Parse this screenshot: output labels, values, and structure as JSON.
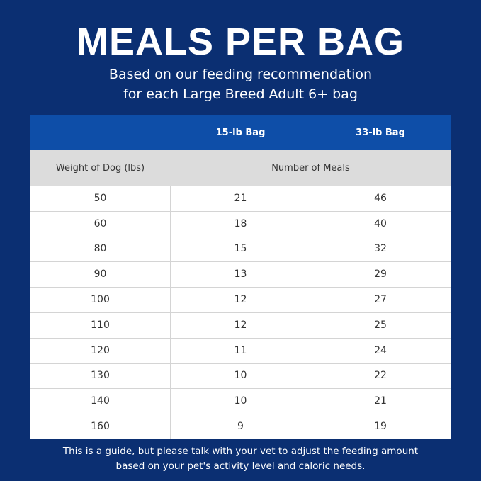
{
  "header": {
    "title": "MEALS PER BAG",
    "subtitle_lines": [
      "Based on our feeding recommendation",
      "for each Large Breed Adult 6+ bag"
    ]
  },
  "table": {
    "bag_headers": [
      "15-lb Bag",
      "33-lb Bag"
    ],
    "row_header": "Weight of Dog (lbs)",
    "group_header": "Number of Meals",
    "rows": [
      [
        50,
        21,
        46
      ],
      [
        60,
        18,
        40
      ],
      [
        80,
        15,
        32
      ],
      [
        90,
        13,
        29
      ],
      [
        100,
        12,
        27
      ],
      [
        110,
        12,
        25
      ],
      [
        120,
        11,
        24
      ],
      [
        130,
        10,
        22
      ],
      [
        140,
        10,
        21
      ],
      [
        160,
        9,
        19
      ]
    ]
  },
  "footer": {
    "lines": [
      "This is a guide, but please talk with your vet to adjust the feeding amount",
      "based on your pet's activity level and caloric needs."
    ]
  }
}
